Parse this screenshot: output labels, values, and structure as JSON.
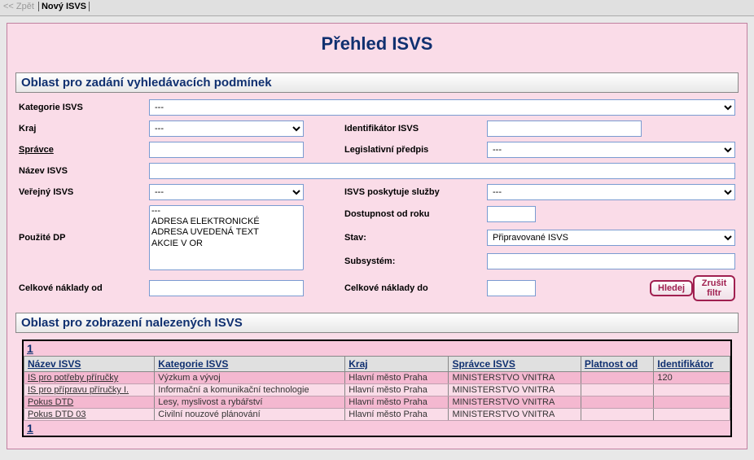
{
  "toolbar": {
    "back": "<< Zpět",
    "new": "Nový ISVS"
  },
  "page_title": "Přehled ISVS",
  "filter_section_title": "Oblast pro zadání vyhledávacích podmínek",
  "results_section_title": "Oblast pro zobrazení nalezených ISVS",
  "labels": {
    "kategorie": "Kategorie ISVS",
    "kraj": "Kraj",
    "identifikator": "Identifikátor ISVS",
    "spravce": "Správce",
    "legislativni": "Legislativní předpis",
    "nazev": "Název ISVS",
    "verejny": "Veřejný ISVS",
    "poskytuje": "ISVS poskytuje služby",
    "pouzite_dp": "Použité DP",
    "dostupnost": "Dostupnost od roku",
    "stav": "Stav:",
    "subsystem": "Subsystém:",
    "naklady_od": "Celkové náklady od",
    "naklady_do": "Celkové náklady do"
  },
  "values": {
    "kategorie": "---",
    "kraj": "---",
    "identifikator": "",
    "spravce": "",
    "legislativni": "---",
    "nazev": "",
    "verejny": "---",
    "poskytuje": "---",
    "stav": "Připravované ISVS",
    "subsystem": "",
    "dostupnost": "",
    "naklady_od": "",
    "naklady_do": ""
  },
  "dp_options": [
    "---",
    "ADRESA ELEKTRONICKÉ",
    "ADRESA UVEDENÁ TEXT",
    "AKCIE V OR"
  ],
  "buttons": {
    "search": "Hledej",
    "clear": "Zrušit filtr"
  },
  "pager": "1",
  "columns": {
    "nazev": "Název ISVS",
    "kategorie": "Kategorie ISVS",
    "kraj": "Kraj",
    "spravce": "Správce ISVS",
    "platnost": "Platnost od",
    "identifikator": "Identifikátor"
  },
  "rows": [
    {
      "nazev": "IS pro potřeby příručky",
      "kategorie": "Výzkum a vývoj",
      "kraj": "Hlavní město Praha",
      "spravce": "MINISTERSTVO VNITRA",
      "platnost": "",
      "identifikator": "120"
    },
    {
      "nazev": "IS pro přípravu příručky I.",
      "kategorie": "Informační a komunikační technologie",
      "kraj": "Hlavní město Praha",
      "spravce": "MINISTERSTVO VNITRA",
      "platnost": "",
      "identifikator": ""
    },
    {
      "nazev": "Pokus DTD",
      "kategorie": "Lesy, myslivost a rybářství",
      "kraj": "Hlavní město Praha",
      "spravce": "MINISTERSTVO VNITRA",
      "platnost": "",
      "identifikator": ""
    },
    {
      "nazev": "Pokus DTD 03",
      "kategorie": "Civilní nouzové plánování",
      "kraj": "Hlavní město Praha",
      "spravce": "MINISTERSTVO VNITRA",
      "platnost": "",
      "identifikator": ""
    }
  ],
  "colors": {
    "page_bg": "#fadce8",
    "accent": "#103070",
    "btn_border": "#a02050",
    "row_odd": "#f4b8d0",
    "row_even": "#fadce8"
  }
}
